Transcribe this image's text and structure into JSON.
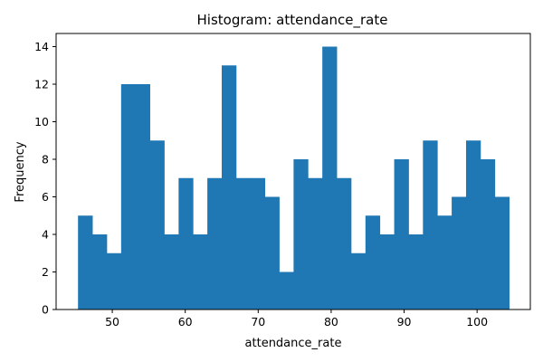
{
  "chart_data": {
    "type": "bar",
    "title": "Histogram: attendance_rate",
    "xlabel": "attendance_rate",
    "ylabel": "Frequency",
    "bin_start": 45.3,
    "bin_width": 1.97,
    "values": [
      5,
      4,
      3,
      12,
      12,
      9,
      4,
      7,
      4,
      7,
      13,
      7,
      7,
      6,
      2,
      8,
      7,
      14,
      7,
      3,
      5,
      4,
      8,
      4,
      9,
      5,
      6,
      9,
      8,
      6
    ],
    "xlim": [
      42.3,
      107.3
    ],
    "ylim": [
      0,
      14.7
    ],
    "xticks": [
      50,
      60,
      70,
      80,
      90,
      100
    ],
    "yticks": [
      0,
      2,
      4,
      6,
      8,
      10,
      12,
      14
    ],
    "bar_color": "#1f77b4",
    "grid": false,
    "legend": "none"
  }
}
